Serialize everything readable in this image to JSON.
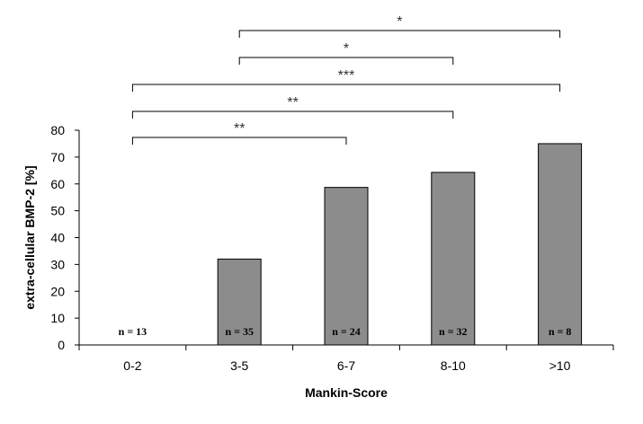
{
  "chart_data": {
    "type": "bar",
    "categories": [
      "0-2",
      "3-5",
      "6-7",
      "8-10",
      ">10"
    ],
    "values": [
      0,
      32,
      58.7,
      64.3,
      75
    ],
    "sample_sizes": [
      "n = 13",
      "n = 35",
      "n = 24",
      "n = 32",
      "n = 8"
    ],
    "xlabel": "Mankin-Score",
    "ylabel": "extra-cellular BMP-2 [%]",
    "ylim": [
      0,
      80
    ],
    "yticks": [
      0,
      10,
      20,
      30,
      40,
      50,
      60,
      70,
      80
    ],
    "bar_color": "#8c8c8c",
    "grid": false,
    "significance": [
      {
        "from": "0-2",
        "to": "6-7",
        "label": "**"
      },
      {
        "from": "0-2",
        "to": "8-10",
        "label": "**"
      },
      {
        "from": "0-2",
        "to": ">10",
        "label": "***"
      },
      {
        "from": "3-5",
        "to": "8-10",
        "label": "*"
      },
      {
        "from": "3-5",
        "to": ">10",
        "label": "*"
      }
    ]
  }
}
